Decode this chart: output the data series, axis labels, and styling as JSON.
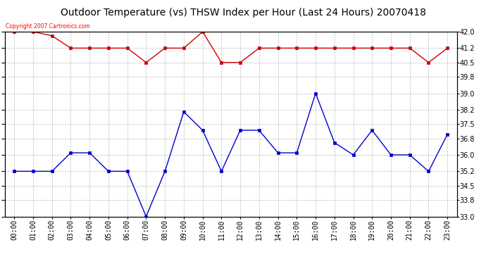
{
  "title": "Outdoor Temperature (vs) THSW Index per Hour (Last 24 Hours) 20070418",
  "copyright_text": "Copyright 2007 Cartronics.com",
  "hours": [
    0,
    1,
    2,
    3,
    4,
    5,
    6,
    7,
    8,
    9,
    10,
    11,
    12,
    13,
    14,
    15,
    16,
    17,
    18,
    19,
    20,
    21,
    22,
    23
  ],
  "hour_labels": [
    "00:00",
    "01:00",
    "02:00",
    "03:00",
    "04:00",
    "05:00",
    "06:00",
    "07:00",
    "08:00",
    "09:00",
    "10:00",
    "11:00",
    "12:00",
    "13:00",
    "14:00",
    "15:00",
    "16:00",
    "17:00",
    "18:00",
    "19:00",
    "20:00",
    "21:00",
    "22:00",
    "23:00"
  ],
  "temp_blue": [
    35.2,
    35.2,
    35.2,
    36.1,
    36.1,
    35.2,
    35.2,
    33.0,
    35.2,
    38.1,
    37.2,
    35.2,
    37.2,
    37.2,
    36.1,
    36.1,
    39.0,
    36.6,
    36.0,
    37.2,
    36.0,
    36.0,
    35.2,
    37.0
  ],
  "thsw_red": [
    42.0,
    42.0,
    41.8,
    41.2,
    41.2,
    41.2,
    41.2,
    40.5,
    41.2,
    41.2,
    42.0,
    40.5,
    40.5,
    41.2,
    41.2,
    41.2,
    41.2,
    41.2,
    41.2,
    41.2,
    41.2,
    41.2,
    40.5,
    41.2
  ],
  "ylim": [
    33.0,
    42.0
  ],
  "yticks": [
    33.0,
    33.8,
    34.5,
    35.2,
    36.0,
    36.8,
    37.5,
    38.2,
    39.0,
    39.8,
    40.5,
    41.2,
    42.0
  ],
  "blue_color": "#0000cc",
  "red_color": "#cc0000",
  "bg_color": "#ffffff",
  "grid_color": "#bbbbbb",
  "title_fontsize": 10,
  "tick_fontsize": 7
}
